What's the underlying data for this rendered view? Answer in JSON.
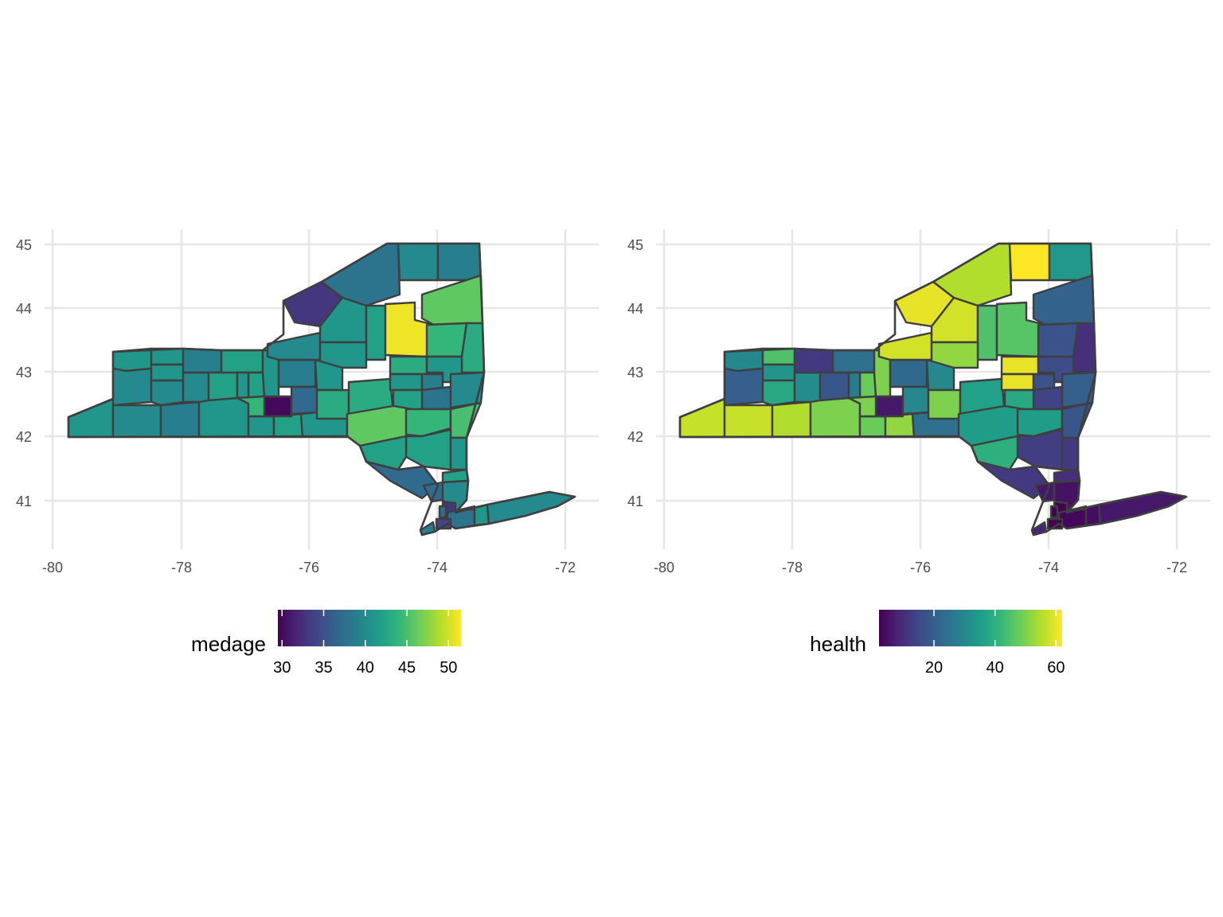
{
  "colors": {
    "viridis": [
      "#440154",
      "#482878",
      "#3E4A89",
      "#31688E",
      "#26828E",
      "#1F9E89",
      "#35B779",
      "#6ECE58",
      "#B5DE2B",
      "#FDE725"
    ],
    "border": "#3f3f3f",
    "grid": "#e6e6e6",
    "axis_text": "#4d4d4d"
  },
  "panels": [
    {
      "variable": "medage",
      "legend": {
        "title": "medage",
        "range": [
          29.5,
          51.5
        ],
        "ticks": [
          "30",
          "35",
          "40",
          "45",
          "50"
        ]
      },
      "x_axis": {
        "ticks": [
          "-80",
          "-78",
          "-76",
          "-74",
          "-72"
        ]
      },
      "y_axis": {
        "ticks": [
          "45",
          "44",
          "43",
          "42",
          "41"
        ]
      },
      "regions": [
        {
          "id": "chautauqua",
          "value": 41
        },
        {
          "id": "cattaraugus",
          "value": 40
        },
        {
          "id": "allegany",
          "value": 39
        },
        {
          "id": "steuben",
          "value": 41
        },
        {
          "id": "chemung",
          "value": 41
        },
        {
          "id": "tioga",
          "value": 42
        },
        {
          "id": "broome",
          "value": 41
        },
        {
          "id": "tompkins",
          "value": 30
        },
        {
          "id": "niagara",
          "value": 41
        },
        {
          "id": "erie",
          "value": 40
        },
        {
          "id": "orleans",
          "value": 41
        },
        {
          "id": "genesee",
          "value": 41
        },
        {
          "id": "wyoming",
          "value": 40
        },
        {
          "id": "livingston",
          "value": 40
        },
        {
          "id": "monroe",
          "value": 39
        },
        {
          "id": "ontario",
          "value": 42
        },
        {
          "id": "wayne",
          "value": 42
        },
        {
          "id": "seneca",
          "value": 42
        },
        {
          "id": "yates",
          "value": 41
        },
        {
          "id": "schuyler",
          "value": 44
        },
        {
          "id": "cayuga",
          "value": 41
        },
        {
          "id": "onondaga",
          "value": 39
        },
        {
          "id": "cortland",
          "value": 37
        },
        {
          "id": "oswego",
          "value": 40
        },
        {
          "id": "jefferson",
          "value": 33
        },
        {
          "id": "st_lawrence",
          "value": 38
        },
        {
          "id": "franklin",
          "value": 40
        },
        {
          "id": "clinton",
          "value": 39
        },
        {
          "id": "essex",
          "value": 46
        },
        {
          "id": "lewis",
          "value": 41
        },
        {
          "id": "herkimer",
          "value": 42
        },
        {
          "id": "hamilton",
          "value": 51
        },
        {
          "id": "warren",
          "value": 44
        },
        {
          "id": "washington",
          "value": 43
        },
        {
          "id": "oneida",
          "value": 41
        },
        {
          "id": "madison",
          "value": 41
        },
        {
          "id": "chenango",
          "value": 43
        },
        {
          "id": "otsego",
          "value": 43
        },
        {
          "id": "fulton",
          "value": 43
        },
        {
          "id": "montgomery",
          "value": 41
        },
        {
          "id": "schenectady",
          "value": 39
        },
        {
          "id": "saratoga",
          "value": 41
        },
        {
          "id": "albany",
          "value": 38
        },
        {
          "id": "rensselaer",
          "value": 40
        },
        {
          "id": "schoharie",
          "value": 42
        },
        {
          "id": "delaware",
          "value": 46
        },
        {
          "id": "greene",
          "value": 44
        },
        {
          "id": "columbia",
          "value": 45
        },
        {
          "id": "ulster",
          "value": 42
        },
        {
          "id": "dutchess",
          "value": 41
        },
        {
          "id": "sullivan",
          "value": 42
        },
        {
          "id": "orange",
          "value": 37
        },
        {
          "id": "putnam",
          "value": 42
        },
        {
          "id": "rockland",
          "value": 37
        },
        {
          "id": "westchester",
          "value": 40
        },
        {
          "id": "bronx",
          "value": 33
        },
        {
          "id": "new_york",
          "value": 37
        },
        {
          "id": "queens",
          "value": 38
        },
        {
          "id": "kings",
          "value": 34
        },
        {
          "id": "richmond",
          "value": 39
        },
        {
          "id": "nassau",
          "value": 41
        },
        {
          "id": "suffolk",
          "value": 40
        }
      ]
    },
    {
      "variable": "health",
      "legend": {
        "title": "health",
        "range": [
          2,
          62
        ],
        "ticks": [
          "20",
          "40",
          "60"
        ]
      },
      "x_axis": {
        "ticks": [
          "-80",
          "-78",
          "-76",
          "-74",
          "-72"
        ]
      },
      "y_axis": {
        "ticks": [
          "45",
          "44",
          "43",
          "42",
          "41"
        ]
      },
      "regions": [
        {
          "id": "chautauqua",
          "value": 57
        },
        {
          "id": "cattaraugus",
          "value": 57
        },
        {
          "id": "allegany",
          "value": 55
        },
        {
          "id": "steuben",
          "value": 50
        },
        {
          "id": "chemung",
          "value": 48
        },
        {
          "id": "tioga",
          "value": 52
        },
        {
          "id": "broome",
          "value": 24
        },
        {
          "id": "tompkins",
          "value": 6
        },
        {
          "id": "niagara",
          "value": 30
        },
        {
          "id": "erie",
          "value": 20
        },
        {
          "id": "orleans",
          "value": 45
        },
        {
          "id": "genesee",
          "value": 33
        },
        {
          "id": "wyoming",
          "value": 38
        },
        {
          "id": "livingston",
          "value": 31
        },
        {
          "id": "monroe",
          "value": 12
        },
        {
          "id": "ontario",
          "value": 18
        },
        {
          "id": "wayne",
          "value": 24
        },
        {
          "id": "seneca",
          "value": 48
        },
        {
          "id": "yates",
          "value": 27
        },
        {
          "id": "schuyler",
          "value": 50
        },
        {
          "id": "cayuga",
          "value": 50
        },
        {
          "id": "onondaga",
          "value": 22
        },
        {
          "id": "cortland",
          "value": 30
        },
        {
          "id": "oswego",
          "value": 58
        },
        {
          "id": "jefferson",
          "value": 60
        },
        {
          "id": "st_lawrence",
          "value": 55
        },
        {
          "id": "franklin",
          "value": 62
        },
        {
          "id": "clinton",
          "value": 34
        },
        {
          "id": "essex",
          "value": 21
        },
        {
          "id": "lewis",
          "value": 58
        },
        {
          "id": "herkimer",
          "value": 45
        },
        {
          "id": "hamilton",
          "value": 46
        },
        {
          "id": "warren",
          "value": 17
        },
        {
          "id": "washington",
          "value": 10
        },
        {
          "id": "oneida",
          "value": 52
        },
        {
          "id": "madison",
          "value": 30
        },
        {
          "id": "chenango",
          "value": 50
        },
        {
          "id": "otsego",
          "value": 36
        },
        {
          "id": "fulton",
          "value": 60
        },
        {
          "id": "montgomery",
          "value": 60
        },
        {
          "id": "schenectady",
          "value": 17
        },
        {
          "id": "saratoga",
          "value": 16
        },
        {
          "id": "albany",
          "value": 14
        },
        {
          "id": "rensselaer",
          "value": 20
        },
        {
          "id": "schoharie",
          "value": 38
        },
        {
          "id": "delaware",
          "value": 35
        },
        {
          "id": "greene",
          "value": 35
        },
        {
          "id": "columbia",
          "value": 18
        },
        {
          "id": "ulster",
          "value": 13
        },
        {
          "id": "dutchess",
          "value": 12
        },
        {
          "id": "sullivan",
          "value": 40
        },
        {
          "id": "orange",
          "value": 12
        },
        {
          "id": "putnam",
          "value": 10
        },
        {
          "id": "rockland",
          "value": 6
        },
        {
          "id": "westchester",
          "value": 5
        },
        {
          "id": "bronx",
          "value": 2
        },
        {
          "id": "new_york",
          "value": 2
        },
        {
          "id": "queens",
          "value": 3
        },
        {
          "id": "kings",
          "value": 2
        },
        {
          "id": "richmond",
          "value": 8
        },
        {
          "id": "nassau",
          "value": 4
        },
        {
          "id": "suffolk",
          "value": 6
        }
      ]
    }
  ]
}
